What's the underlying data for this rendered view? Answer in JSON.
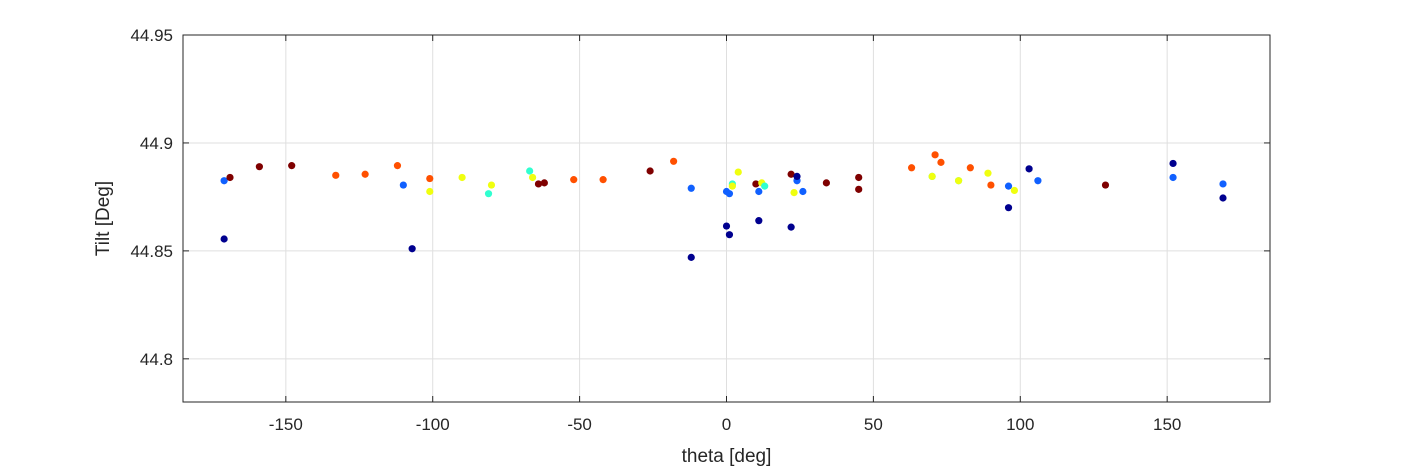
{
  "chart_data": {
    "type": "scatter",
    "xlabel": "theta [deg]",
    "ylabel": "Tilt [Deg]",
    "xlim": [
      -185,
      185
    ],
    "ylim": [
      44.78,
      44.95
    ],
    "xticks": [
      -150,
      -100,
      -50,
      0,
      50,
      100,
      150
    ],
    "xtick_labels": [
      "-150",
      "-100",
      "-50",
      "0",
      "50",
      "100",
      "150"
    ],
    "yticks": [
      44.8,
      44.85,
      44.9,
      44.95
    ],
    "ytick_labels": [
      "44.8",
      "44.85",
      "44.9",
      "44.95"
    ],
    "grid": true,
    "colormap": "jet",
    "points": [
      {
        "x": -171,
        "y": 44.8825,
        "color": "#1060ff"
      },
      {
        "x": -171,
        "y": 44.8555,
        "color": "#00008f"
      },
      {
        "x": -169,
        "y": 44.884,
        "color": "#7f0000"
      },
      {
        "x": -159,
        "y": 44.889,
        "color": "#7f0000"
      },
      {
        "x": -148,
        "y": 44.8895,
        "color": "#7f0000"
      },
      {
        "x": -133,
        "y": 44.885,
        "color": "#ff5000"
      },
      {
        "x": -123,
        "y": 44.8855,
        "color": "#ff5000"
      },
      {
        "x": -112,
        "y": 44.8895,
        "color": "#ff5000"
      },
      {
        "x": -110,
        "y": 44.8805,
        "color": "#1060ff"
      },
      {
        "x": -107,
        "y": 44.851,
        "color": "#00008f"
      },
      {
        "x": -101,
        "y": 44.8835,
        "color": "#ff5000"
      },
      {
        "x": -101,
        "y": 44.8775,
        "color": "#f0ff0f"
      },
      {
        "x": -90,
        "y": 44.884,
        "color": "#f0ff0f"
      },
      {
        "x": -80,
        "y": 44.8805,
        "color": "#f0ff0f"
      },
      {
        "x": -81,
        "y": 44.8765,
        "color": "#30ffd0"
      },
      {
        "x": -67,
        "y": 44.887,
        "color": "#30ffd0"
      },
      {
        "x": -66,
        "y": 44.884,
        "color": "#f0ff0f"
      },
      {
        "x": -64,
        "y": 44.881,
        "color": "#7f0000"
      },
      {
        "x": -62,
        "y": 44.8815,
        "color": "#7f0000"
      },
      {
        "x": -52,
        "y": 44.883,
        "color": "#ff5000"
      },
      {
        "x": -42,
        "y": 44.883,
        "color": "#ff5000"
      },
      {
        "x": -26,
        "y": 44.887,
        "color": "#7f0000"
      },
      {
        "x": -18,
        "y": 44.8915,
        "color": "#ff5000"
      },
      {
        "x": -12,
        "y": 44.879,
        "color": "#1060ff"
      },
      {
        "x": -12,
        "y": 44.847,
        "color": "#00008f"
      },
      {
        "x": 0,
        "y": 44.8775,
        "color": "#1060ff"
      },
      {
        "x": 0,
        "y": 44.8615,
        "color": "#00008f"
      },
      {
        "x": 1,
        "y": 44.8575,
        "color": "#00008f"
      },
      {
        "x": 1,
        "y": 44.8765,
        "color": "#1060ff"
      },
      {
        "x": 2,
        "y": 44.881,
        "color": "#30ffd0"
      },
      {
        "x": 2,
        "y": 44.88,
        "color": "#f0ff0f"
      },
      {
        "x": 4,
        "y": 44.8865,
        "color": "#f0ff0f"
      },
      {
        "x": 10,
        "y": 44.881,
        "color": "#7f0000"
      },
      {
        "x": 11,
        "y": 44.8775,
        "color": "#1060ff"
      },
      {
        "x": 11,
        "y": 44.864,
        "color": "#00008f"
      },
      {
        "x": 12,
        "y": 44.8815,
        "color": "#f0ff0f"
      },
      {
        "x": 13,
        "y": 44.88,
        "color": "#30ffd0"
      },
      {
        "x": 22,
        "y": 44.8855,
        "color": "#7f0000"
      },
      {
        "x": 22,
        "y": 44.861,
        "color": "#00008f"
      },
      {
        "x": 23,
        "y": 44.877,
        "color": "#f0ff0f"
      },
      {
        "x": 24,
        "y": 44.8825,
        "color": "#1060ff"
      },
      {
        "x": 24,
        "y": 44.8845,
        "color": "#00008f"
      },
      {
        "x": 26,
        "y": 44.8775,
        "color": "#1060ff"
      },
      {
        "x": 34,
        "y": 44.8815,
        "color": "#7f0000"
      },
      {
        "x": 45,
        "y": 44.884,
        "color": "#7f0000"
      },
      {
        "x": 45,
        "y": 44.8785,
        "color": "#7f0000"
      },
      {
        "x": 63,
        "y": 44.8885,
        "color": "#ff5000"
      },
      {
        "x": 70,
        "y": 44.8845,
        "color": "#30ffd0"
      },
      {
        "x": 70,
        "y": 44.8845,
        "color": "#f0ff0f"
      },
      {
        "x": 71,
        "y": 44.8945,
        "color": "#ff5000"
      },
      {
        "x": 73,
        "y": 44.891,
        "color": "#ff5000"
      },
      {
        "x": 79,
        "y": 44.8825,
        "color": "#30ffd0"
      },
      {
        "x": 79,
        "y": 44.8825,
        "color": "#f0ff0f"
      },
      {
        "x": 83,
        "y": 44.8885,
        "color": "#ff5000"
      },
      {
        "x": 89,
        "y": 44.886,
        "color": "#f0ff0f"
      },
      {
        "x": 90,
        "y": 44.8805,
        "color": "#ff5000"
      },
      {
        "x": 96,
        "y": 44.88,
        "color": "#1060ff"
      },
      {
        "x": 96,
        "y": 44.87,
        "color": "#00008f"
      },
      {
        "x": 98,
        "y": 44.878,
        "color": "#f0ff0f"
      },
      {
        "x": 103,
        "y": 44.888,
        "color": "#00008f"
      },
      {
        "x": 106,
        "y": 44.8825,
        "color": "#1060ff"
      },
      {
        "x": 129,
        "y": 44.8805,
        "color": "#7f0000"
      },
      {
        "x": 152,
        "y": 44.8905,
        "color": "#00008f"
      },
      {
        "x": 152,
        "y": 44.884,
        "color": "#1060ff"
      },
      {
        "x": 169,
        "y": 44.881,
        "color": "#1060ff"
      },
      {
        "x": 169,
        "y": 44.8745,
        "color": "#00008f"
      }
    ]
  }
}
